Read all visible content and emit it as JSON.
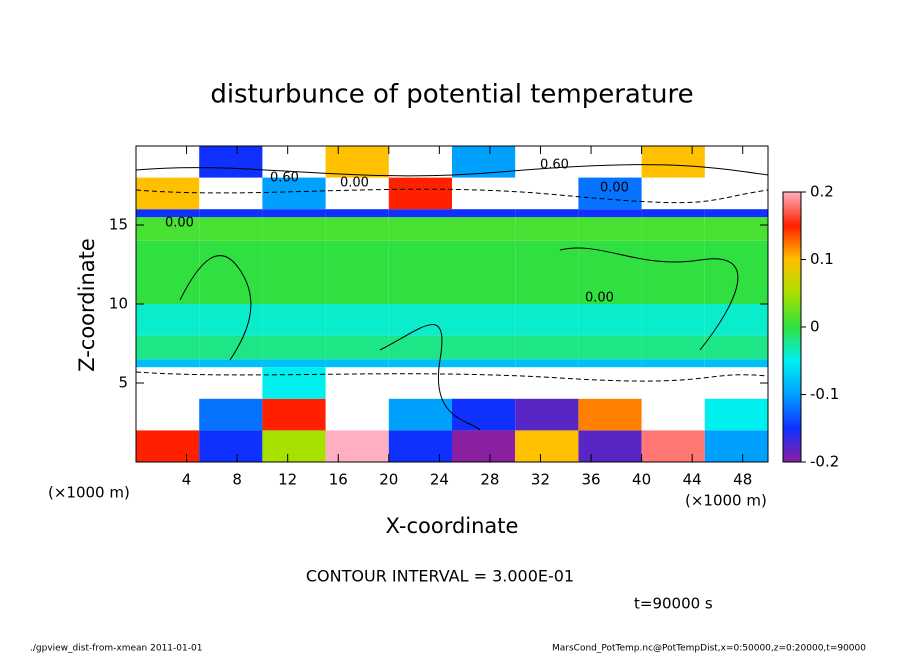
{
  "chart_data": {
    "type": "heatmap",
    "title": "disturbunce of potential temperature",
    "x_label": "X-coordinate",
    "y_label": "Z-coordinate",
    "x_unit": "(×1000 m)",
    "contour_interval": "CONTOUR INTERVAL = 3.000E-01",
    "time_label": "t=90000 s",
    "footer_left": "./gpview_dist-from-xmean  2011-01-01",
    "footer_right": "MarsCond_PotTemp.nc@PotTempDist,x=0:50000,z=0:20000,t=90000",
    "contour_labels": [
      "0.00",
      "0.60"
    ],
    "xlim": [
      0,
      50
    ],
    "xticks": [
      4,
      8,
      12,
      16,
      20,
      24,
      28,
      32,
      36,
      40,
      44,
      48
    ],
    "ylim": [
      0,
      20
    ],
    "yticks": [
      5,
      10,
      15
    ],
    "clim": [
      -0.2,
      0.2
    ],
    "cticks": [
      -0.2,
      -0.1,
      0,
      0.1,
      0.2
    ],
    "colors": [
      "#8a1fa0",
      "#1030ff",
      "#00a0ff",
      "#00f0f0",
      "#30e040",
      "#a8e000",
      "#ffc000",
      "#ff2000",
      "#ffb0c0"
    ],
    "field": {
      "x_edges": [
        0,
        5,
        10,
        15,
        20,
        25,
        30,
        35,
        40,
        45,
        50
      ],
      "z_edges": [
        0,
        2,
        4,
        6,
        6.5,
        8,
        10,
        14,
        15.5,
        16,
        18,
        20
      ],
      "values": [
        [
          0.15,
          -0.15,
          0.05,
          0.2,
          -0.15,
          -0.2,
          0.1,
          -0.18,
          0.18,
          -0.1
        ],
        [
          null,
          -0.12,
          0.15,
          null,
          -0.1,
          -0.15,
          -0.18,
          0.12,
          null,
          -0.05
        ],
        [
          null,
          null,
          -0.05,
          null,
          null,
          null,
          null,
          null,
          null,
          null
        ],
        [
          -0.08,
          -0.08,
          -0.08,
          -0.08,
          -0.08,
          -0.08,
          -0.08,
          -0.08,
          -0.08,
          -0.08
        ],
        [
          -0.02,
          -0.02,
          -0.02,
          -0.02,
          -0.02,
          -0.02,
          -0.02,
          -0.02,
          -0.02,
          -0.02
        ],
        [
          -0.04,
          -0.04,
          -0.04,
          -0.04,
          -0.04,
          -0.04,
          -0.04,
          -0.04,
          -0.04,
          -0.04
        ],
        [
          0,
          0,
          0,
          0,
          0,
          0,
          0,
          0,
          0,
          0
        ],
        [
          0.01,
          0.01,
          0.01,
          0.01,
          0.01,
          0.01,
          0.01,
          0.01,
          0.01,
          0.01
        ],
        [
          -0.15,
          -0.15,
          -0.15,
          -0.15,
          -0.15,
          -0.15,
          -0.15,
          -0.15,
          -0.15,
          -0.15
        ],
        [
          0.1,
          null,
          -0.1,
          null,
          0.15,
          null,
          null,
          -0.12,
          null,
          null
        ],
        [
          null,
          -0.15,
          null,
          0.1,
          null,
          -0.1,
          null,
          null,
          0.1,
          null
        ]
      ]
    }
  }
}
